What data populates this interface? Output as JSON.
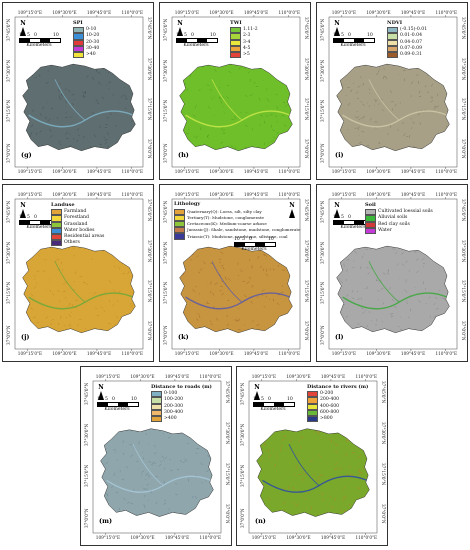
{
  "scale": {
    "nums": [
      "10",
      "5",
      "0",
      "10"
    ],
    "unit": "Kilometers"
  },
  "north_label": "N",
  "lon_ticks": [
    "109°15'0\"E",
    "109°30'0\"E",
    "109°45'0\"E",
    "110°0'0\"E"
  ],
  "lat_ticks": [
    "37°45'0\"N",
    "37°30'0\"N",
    "37°15'0\"N",
    "37°0'0\"N"
  ],
  "panels": [
    {
      "id": "g",
      "label": "(g)",
      "basecolor": "#5f6e70",
      "texture": "#3a4547",
      "accent": "#7fb4c9",
      "legend": {
        "title": "SPI",
        "items": [
          {
            "label": "0-10",
            "color": "#8fb5b7"
          },
          {
            "label": "10-20",
            "color": "#3a8fd6"
          },
          {
            "label": "20-30",
            "color": "#e23a3a"
          },
          {
            "label": "30-40",
            "color": "#c43ad8"
          },
          {
            "label": ">40",
            "color": "#f2e33a"
          }
        ]
      }
    },
    {
      "id": "h",
      "label": "(h)",
      "basecolor": "#6fbf2a",
      "texture": "#3f8f18",
      "accent": "#c9e84a",
      "legend": {
        "title": "TWI",
        "items": [
          {
            "label": "1.11-2",
            "color": "#78c63a"
          },
          {
            "label": "2-3",
            "color": "#a6d63a"
          },
          {
            "label": "3-4",
            "color": "#e8e63a"
          },
          {
            "label": "4-5",
            "color": "#f0a33a"
          },
          {
            "label": ">5",
            "color": "#e2443a"
          }
        ]
      }
    },
    {
      "id": "i",
      "label": "(i)",
      "basecolor": "#a7a086",
      "texture": "#6f6a55",
      "accent": "#cfc8a8",
      "legend": {
        "title": "NDVI",
        "items": [
          {
            "label": "(-0.15)-0.01",
            "color": "#8fb7c4"
          },
          {
            "label": "0.01-0.04",
            "color": "#c9dfa8"
          },
          {
            "label": "0.04-0.07",
            "color": "#eee0a8"
          },
          {
            "label": "0.07-0.09",
            "color": "#d8a56a"
          },
          {
            "label": "0.09-0.31",
            "color": "#9a5a2a"
          }
        ]
      }
    },
    {
      "id": "j",
      "label": "(j)",
      "basecolor": "#d8a636",
      "texture": "#b8781e",
      "accent": "#6aa83a",
      "legend": {
        "title": "Landuse",
        "items": [
          {
            "label": "Farmland",
            "color": "#e2a43a"
          },
          {
            "label": "Forestland",
            "color": "#f2d83a"
          },
          {
            "label": "Grassland",
            "color": "#8ec63a"
          },
          {
            "label": "Water bodies",
            "color": "#3a8fd6"
          },
          {
            "label": "Residential areas",
            "color": "#e2443a"
          },
          {
            "label": "Others",
            "color": "#4a2a7a"
          }
        ]
      }
    },
    {
      "id": "k",
      "label": "(k)",
      "basecolor": "#c7943f",
      "texture": "#8a5e2a",
      "accent": "#5a5aa8",
      "legend": {
        "title": "Lithology",
        "items": [
          {
            "label": "Quaternary(Q): Loess, silt, silty clay",
            "color": "#e2a43a"
          },
          {
            "label": "Tertiary(T): Mudstone, conglomerate",
            "color": "#f2d83a"
          },
          {
            "label": "Cretaceous(K): Medium-coarse arkose",
            "color": "#8ec63a"
          },
          {
            "label": "Jurassic(J): Shale, sandstone, mudstone, conglomerate",
            "color": "#c47a4a"
          },
          {
            "label": "Triassic(T): Mudstone, sandstone, siltstone, coal",
            "color": "#3a3a9a"
          }
        ]
      }
    },
    {
      "id": "l",
      "label": "(l)",
      "basecolor": "#a9a9a9",
      "texture": "#7a7a7a",
      "accent": "#3aa83a",
      "legend": {
        "title": "Soil",
        "items": [
          {
            "label": "Cultivated loessial soils",
            "color": "#b4b4b4"
          },
          {
            "label": "Alluvial soils",
            "color": "#3ab83a"
          },
          {
            "label": "Red clay soils",
            "color": "#d23a3a"
          },
          {
            "label": "Water",
            "color": "#c43ad8"
          }
        ]
      }
    },
    {
      "id": "m",
      "label": "(m)",
      "basecolor": "#8fa6ad",
      "texture": "#5f7a82",
      "accent": "#a8c8d8",
      "legend": {
        "title": "Distance to roads (m)",
        "items": [
          {
            "label": "0-100",
            "color": "#7fb0c4"
          },
          {
            "label": "100-200",
            "color": "#c9dfa8"
          },
          {
            "label": "200-300",
            "color": "#eee0a8"
          },
          {
            "label": "300-400",
            "color": "#f0b86a"
          },
          {
            "label": ">400",
            "color": "#e2a43a"
          }
        ]
      }
    },
    {
      "id": "n",
      "label": "(n)",
      "basecolor": "#7aa82a",
      "texture": "#d86a2a",
      "accent": "#2a4aa8",
      "legend": {
        "title": "Distance to rivers (m)",
        "items": [
          {
            "label": "0-200",
            "color": "#e2443a"
          },
          {
            "label": "200-400",
            "color": "#f0a33a"
          },
          {
            "label": "400-600",
            "color": "#e8e63a"
          },
          {
            "label": "600-800",
            "color": "#6ab83a"
          },
          {
            "label": ">800",
            "color": "#2a3a8a"
          }
        ]
      }
    }
  ]
}
